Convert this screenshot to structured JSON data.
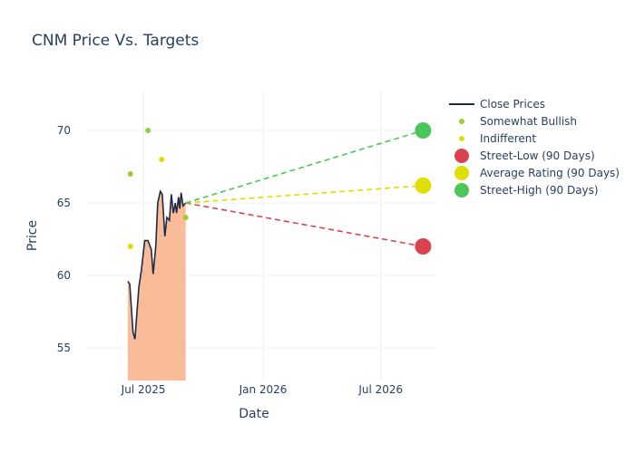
{
  "chart_data": {
    "type": "line",
    "title": "CNM Price Vs. Targets",
    "xlabel": "Date",
    "ylabel": "Price",
    "xlim": [
      "2025-04-04",
      "2026-09-23"
    ],
    "ylim": [
      52.75,
      72.75
    ],
    "x_ticks": [
      {
        "date": "2025-07-01",
        "label": "Jul 2025"
      },
      {
        "date": "2026-01-01",
        "label": "Jan 2026"
      },
      {
        "date": "2026-07-01",
        "label": "Jul 2026"
      }
    ],
    "y_ticks": [
      55,
      60,
      65,
      70
    ],
    "grid": true,
    "legend_position": "right",
    "close_prices": {
      "name": "Close Prices",
      "color": "#1f2a44",
      "fill_color": "#f9b48e",
      "dates": [
        "2025-06-07",
        "2025-06-10",
        "2025-06-15",
        "2025-06-18",
        "2025-06-24",
        "2025-06-28",
        "2025-07-03",
        "2025-07-08",
        "2025-07-13",
        "2025-07-16",
        "2025-07-20",
        "2025-07-23",
        "2025-07-27",
        "2025-07-30",
        "2025-08-03",
        "2025-08-06",
        "2025-08-10",
        "2025-08-13",
        "2025-08-16",
        "2025-08-19",
        "2025-08-21",
        "2025-08-24",
        "2025-08-26",
        "2025-08-28",
        "2025-08-31",
        "2025-09-04"
      ],
      "values": [
        59.6,
        59.4,
        56.1,
        55.6,
        59.2,
        60.4,
        62.4,
        62.4,
        61.8,
        60.1,
        62.0,
        65.0,
        65.8,
        65.6,
        62.7,
        64.0,
        63.8,
        65.6,
        64.3,
        65.0,
        64.3,
        65.4,
        64.6,
        65.7,
        64.8,
        65.0
      ]
    },
    "ratings": [
      {
        "name": "Somewhat Bullish",
        "color": "#9acd32",
        "points": [
          {
            "date": "2025-06-11",
            "value": 67
          },
          {
            "date": "2025-07-08",
            "value": 70
          },
          {
            "date": "2025-09-04",
            "value": 64
          }
        ]
      },
      {
        "name": "Indifferent",
        "color": "#dede00",
        "points": [
          {
            "date": "2025-06-11",
            "value": 62
          },
          {
            "date": "2025-07-29",
            "value": 68
          }
        ]
      }
    ],
    "targets": {
      "start": {
        "date": "2025-09-04",
        "value": 65.0
      },
      "end_date": "2026-09-04",
      "series": [
        {
          "name": "Street-Low (90 Days)",
          "value": 62,
          "color": "#d9434f"
        },
        {
          "name": "Average Rating (90 Days)",
          "value": 66.2,
          "color": "#dede00"
        },
        {
          "name": "Street-High (90 Days)",
          "value": 70,
          "color": "#4cc55a"
        }
      ]
    }
  }
}
